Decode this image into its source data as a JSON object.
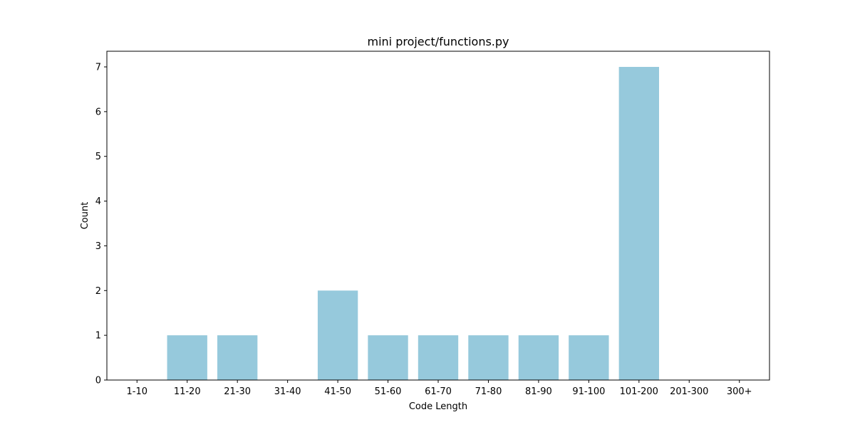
{
  "chart_data": {
    "type": "bar",
    "title": "mini project/functions.py",
    "xlabel": "Code Length",
    "ylabel": "Count",
    "categories": [
      "1-10",
      "11-20",
      "21-30",
      "31-40",
      "41-50",
      "51-60",
      "61-70",
      "71-80",
      "81-90",
      "91-100",
      "101-200",
      "201-300",
      "300+"
    ],
    "values": [
      0,
      1,
      1,
      0,
      2,
      1,
      1,
      1,
      1,
      1,
      7,
      0,
      0
    ],
    "yticks": [
      0,
      1,
      2,
      3,
      4,
      5,
      6,
      7
    ],
    "ylim": [
      0,
      7.35
    ],
    "bar_color": "#96c9dc",
    "grid": false,
    "legend": "none"
  }
}
